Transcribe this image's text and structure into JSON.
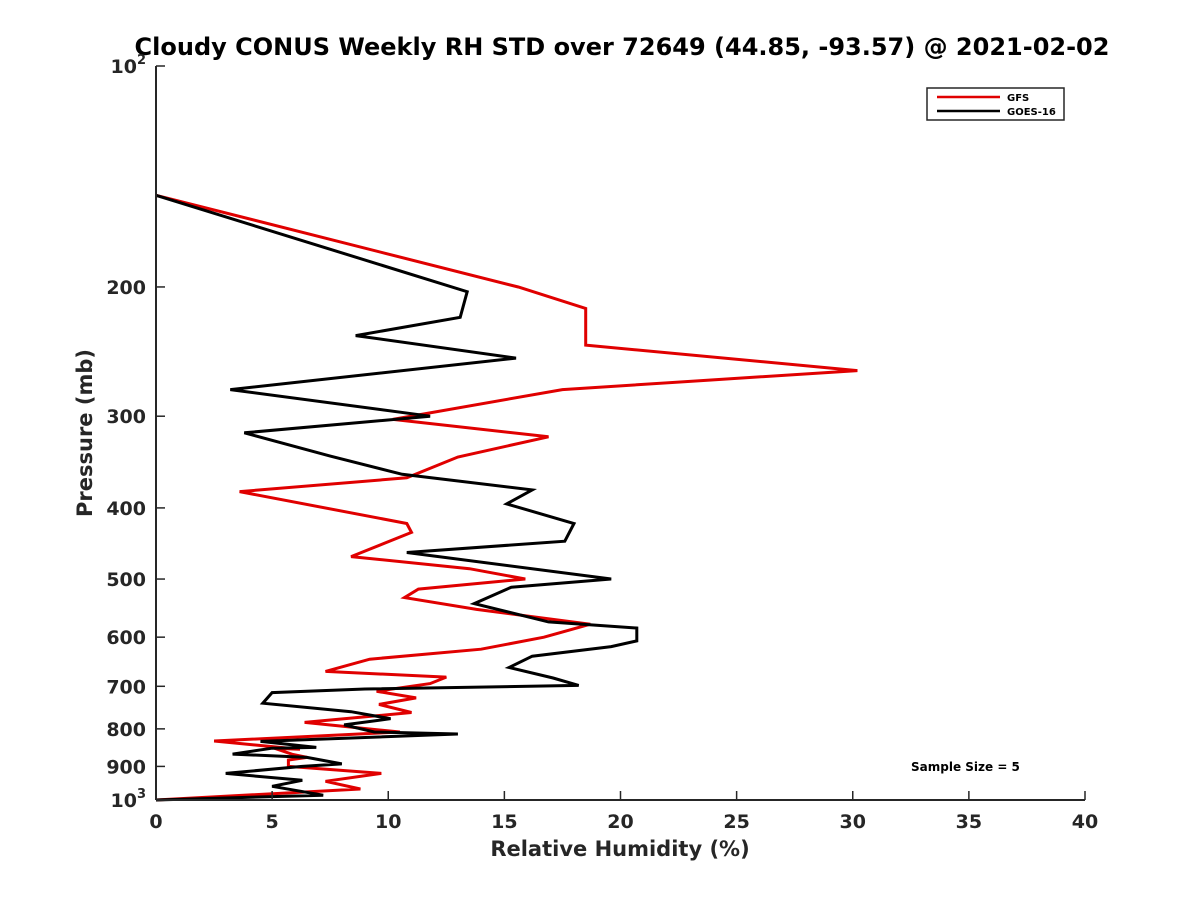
{
  "chart_data": {
    "type": "line",
    "title": "Cloudy CONUS Weekly RH STD over 72649 (44.85, -93.57) @ 2021-02-02",
    "xlabel": "Relative Humidity (%)",
    "ylabel": "Pressure (mb)",
    "xlim": [
      0,
      40
    ],
    "ylim": [
      100,
      1000
    ],
    "y_scale": "log",
    "y_reversed": true,
    "x_ticks": [
      "0",
      "5",
      "10",
      "15",
      "20",
      "25",
      "30",
      "35",
      "40"
    ],
    "x_tick_values": [
      0,
      5,
      10,
      15,
      20,
      25,
      30,
      35,
      40
    ],
    "y_ticks": [
      {
        "value": 100,
        "base": "10",
        "exp": "2"
      },
      {
        "value": 200,
        "label": "200"
      },
      {
        "value": 300,
        "label": "300"
      },
      {
        "value": 400,
        "label": "400"
      },
      {
        "value": 500,
        "label": "500"
      },
      {
        "value": 600,
        "label": "600"
      },
      {
        "value": 700,
        "label": "700"
      },
      {
        "value": 800,
        "label": "800"
      },
      {
        "value": 900,
        "label": "900"
      },
      {
        "value": 1000,
        "base": "10",
        "exp": "3"
      }
    ],
    "legend_position": "top-right",
    "grid": false,
    "annotation": "Sample Size = 5",
    "series": [
      {
        "name": "GFS",
        "color": "#e00000",
        "points": [
          [
            0,
            150
          ],
          [
            15.6,
            200
          ],
          [
            18.5,
            214
          ],
          [
            18.5,
            240
          ],
          [
            30.2,
            260
          ],
          [
            17.5,
            276
          ],
          [
            10.2,
            303
          ],
          [
            16.9,
            320
          ],
          [
            13.0,
            341
          ],
          [
            10.8,
            364
          ],
          [
            3.6,
            380
          ],
          [
            10.8,
            420
          ],
          [
            11.0,
            432
          ],
          [
            8.4,
            466
          ],
          [
            13.5,
            484
          ],
          [
            15.9,
            500
          ],
          [
            11.3,
            516
          ],
          [
            10.7,
            530
          ],
          [
            13.8,
            550
          ],
          [
            18.7,
            576
          ],
          [
            16.7,
            600
          ],
          [
            14.0,
            623
          ],
          [
            9.2,
            643
          ],
          [
            7.3,
            668
          ],
          [
            12.5,
            680
          ],
          [
            11.8,
            694
          ],
          [
            9.5,
            711
          ],
          [
            11.2,
            726
          ],
          [
            9.6,
            741
          ],
          [
            11.0,
            760
          ],
          [
            6.4,
            784
          ],
          [
            10.5,
            808
          ],
          [
            2.5,
            831
          ],
          [
            6.2,
            853
          ],
          [
            5.1,
            850
          ],
          [
            5.9,
            867
          ],
          [
            6.5,
            875
          ],
          [
            5.7,
            882
          ],
          [
            5.7,
            900
          ],
          [
            9.7,
            920
          ],
          [
            7.3,
            943
          ],
          [
            8.8,
            966
          ],
          [
            0,
            1000
          ]
        ]
      },
      {
        "name": "GOES-16",
        "color": "#000000",
        "points": [
          [
            0,
            150
          ],
          [
            13.4,
            203
          ],
          [
            13.1,
            220
          ],
          [
            8.6,
            233
          ],
          [
            15.5,
            250
          ],
          [
            3.2,
            276
          ],
          [
            11.8,
            300
          ],
          [
            3.8,
            316
          ],
          [
            7.5,
            340
          ],
          [
            10.6,
            360
          ],
          [
            16.2,
            378
          ],
          [
            15.1,
            395
          ],
          [
            18.0,
            420
          ],
          [
            17.6,
            444
          ],
          [
            10.8,
            460
          ],
          [
            19.6,
            500
          ],
          [
            15.3,
            513
          ],
          [
            13.7,
            540
          ],
          [
            16.9,
            572
          ],
          [
            20.7,
            583
          ],
          [
            20.7,
            607
          ],
          [
            19.6,
            618
          ],
          [
            16.2,
            637
          ],
          [
            15.2,
            660
          ],
          [
            17.1,
            682
          ],
          [
            18.2,
            698
          ],
          [
            9.0,
            706
          ],
          [
            5.0,
            714
          ],
          [
            4.6,
            738
          ],
          [
            8.4,
            758
          ],
          [
            10.1,
            775
          ],
          [
            8.1,
            790
          ],
          [
            9.4,
            808
          ],
          [
            13.0,
            813
          ],
          [
            4.5,
            832
          ],
          [
            6.9,
            848
          ],
          [
            5.0,
            850
          ],
          [
            3.3,
            866
          ],
          [
            6.5,
            875
          ],
          [
            8.0,
            893
          ],
          [
            6.3,
            900
          ],
          [
            3.0,
            920
          ],
          [
            6.3,
            940
          ],
          [
            5.0,
            958
          ],
          [
            7.2,
            985
          ],
          [
            0,
            1000
          ]
        ]
      }
    ]
  }
}
